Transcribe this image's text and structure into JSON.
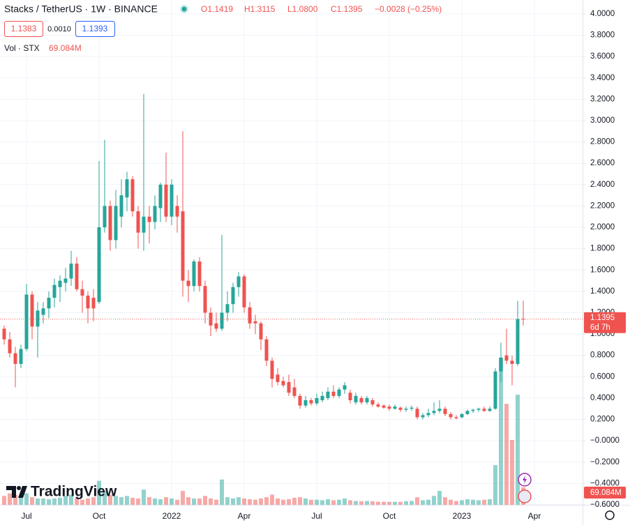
{
  "header": {
    "symbol": "Stacks / TetherUS · 1W · BINANCE",
    "ohlc": [
      "O1.1419",
      "H1.3115",
      "L1.0800",
      "C1.1395"
    ],
    "change": "−0.0028 (−0.25%)",
    "bid": 1.1383,
    "spread": "0.0010",
    "ask": 1.1393
  },
  "branding": "TradingView",
  "chart_data": {
    "type": "candlestick",
    "categories": [
      null,
      null,
      null,
      null,
      "Jul",
      null,
      null,
      null,
      null,
      null,
      null,
      null,
      null,
      null,
      null,
      null,
      null,
      "Oct",
      null,
      null,
      null,
      null,
      null,
      null,
      null,
      null,
      null,
      null,
      null,
      null,
      "2022",
      null,
      null,
      null,
      null,
      null,
      null,
      null,
      null,
      null,
      null,
      null,
      null,
      "Apr",
      null,
      null,
      null,
      null,
      null,
      null,
      null,
      null,
      null,
      null,
      null,
      null,
      "Jul",
      null,
      null,
      null,
      null,
      null,
      null,
      null,
      null,
      null,
      null,
      null,
      null,
      "Oct",
      null,
      null,
      null,
      null,
      null,
      null,
      null,
      null,
      null,
      null,
      null,
      null,
      "2023",
      null,
      null,
      null,
      null,
      null,
      null,
      null,
      null,
      null,
      null,
      null,
      null,
      "Apr"
    ],
    "open": [
      1.05,
      0.95,
      0.82,
      0.72,
      0.86,
      1.37,
      1.07,
      1.18,
      1.24,
      1.34,
      1.44,
      1.48,
      1.52,
      1.66,
      1.42,
      1.36,
      1.34,
      1.3,
      2.0,
      2.2,
      1.88,
      2.1,
      2.28,
      2.45,
      2.15,
      1.95,
      2.1,
      2.05,
      2.18,
      2.4,
      2.1,
      2.2,
      2.15,
      1.5,
      1.45,
      1.68,
      1.45,
      1.2,
      1.1,
      1.05,
      1.2,
      1.28,
      1.44,
      1.54,
      1.25,
      1.12,
      1.1,
      0.95,
      0.75,
      0.62,
      0.56,
      0.55,
      0.5,
      0.42,
      0.33,
      0.38,
      0.35,
      0.38,
      0.4,
      0.46,
      0.42,
      0.48,
      0.45,
      0.36,
      0.4,
      0.36,
      0.38,
      0.34,
      0.33,
      0.32,
      0.3,
      0.31,
      0.29,
      0.3,
      0.3,
      0.22,
      0.24,
      0.26,
      0.28,
      0.3,
      0.25,
      0.22,
      0.22,
      0.25,
      0.28,
      0.29,
      0.3,
      0.28,
      0.3,
      0.65,
      0.8,
      0.75,
      0.72,
      1.1419,
      null,
      null
    ],
    "high": [
      1.08,
      1.02,
      0.88,
      0.9,
      1.47,
      1.4,
      1.3,
      1.3,
      1.4,
      1.52,
      1.55,
      1.62,
      1.78,
      1.72,
      1.5,
      1.4,
      1.42,
      2.62,
      2.82,
      2.25,
      2.35,
      2.45,
      2.52,
      2.48,
      2.2,
      3.25,
      2.2,
      2.3,
      2.42,
      2.7,
      2.45,
      2.3,
      2.9,
      1.6,
      1.7,
      1.72,
      1.5,
      1.25,
      1.2,
      1.93,
      1.4,
      1.48,
      1.58,
      1.56,
      1.3,
      1.18,
      1.12,
      0.98,
      0.78,
      0.68,
      0.6,
      0.62,
      0.58,
      0.44,
      0.42,
      0.4,
      0.44,
      0.46,
      0.5,
      0.52,
      0.5,
      0.55,
      0.48,
      0.45,
      0.42,
      0.42,
      0.4,
      0.36,
      0.34,
      0.34,
      0.34,
      0.32,
      0.32,
      0.33,
      0.32,
      0.26,
      0.3,
      0.36,
      0.38,
      0.32,
      0.27,
      0.24,
      0.26,
      0.29,
      0.3,
      0.31,
      0.32,
      0.32,
      0.68,
      0.92,
      1.05,
      0.8,
      1.31,
      1.3115,
      null,
      null
    ],
    "low": [
      0.9,
      0.78,
      0.5,
      0.68,
      0.84,
      0.95,
      0.78,
      1.1,
      1.15,
      1.25,
      1.3,
      1.4,
      1.45,
      1.4,
      1.2,
      1.1,
      1.12,
      1.28,
      1.95,
      1.78,
      1.8,
      2.0,
      2.15,
      2.1,
      1.8,
      1.78,
      1.85,
      1.98,
      2.05,
      2.05,
      2.02,
      1.95,
      1.35,
      1.3,
      1.4,
      1.4,
      1.1,
      0.98,
      1.02,
      1.03,
      1.12,
      1.2,
      1.35,
      1.2,
      1.05,
      1.0,
      0.85,
      0.7,
      0.5,
      0.52,
      0.5,
      0.42,
      0.4,
      0.3,
      0.31,
      0.33,
      0.33,
      0.36,
      0.38,
      0.4,
      0.4,
      0.44,
      0.35,
      0.34,
      0.34,
      0.34,
      0.32,
      0.31,
      0.3,
      0.28,
      0.29,
      0.27,
      0.27,
      0.28,
      0.2,
      0.2,
      0.22,
      0.24,
      0.26,
      0.23,
      0.2,
      0.2,
      0.21,
      0.24,
      0.26,
      0.27,
      0.27,
      0.27,
      0.29,
      0.55,
      0.72,
      0.52,
      0.7,
      1.08,
      null,
      null
    ],
    "close": [
      0.95,
      0.82,
      0.72,
      0.86,
      1.37,
      1.07,
      1.22,
      1.24,
      1.34,
      1.46,
      1.5,
      1.52,
      1.66,
      1.42,
      1.36,
      1.24,
      1.24,
      2.0,
      2.2,
      1.88,
      2.2,
      2.3,
      2.45,
      2.15,
      1.95,
      2.1,
      2.05,
      2.2,
      2.4,
      2.1,
      2.4,
      2.1,
      1.5,
      1.45,
      1.68,
      1.45,
      1.2,
      1.08,
      1.05,
      1.2,
      1.28,
      1.44,
      1.54,
      1.25,
      1.1,
      1.1,
      0.95,
      0.75,
      0.58,
      0.55,
      0.52,
      0.45,
      0.42,
      0.33,
      0.38,
      0.35,
      0.4,
      0.42,
      0.46,
      0.42,
      0.48,
      0.52,
      0.38,
      0.42,
      0.36,
      0.4,
      0.34,
      0.32,
      0.31,
      0.3,
      0.32,
      0.29,
      0.3,
      0.31,
      0.22,
      0.24,
      0.26,
      0.28,
      0.3,
      0.25,
      0.22,
      0.21,
      0.25,
      0.28,
      0.29,
      0.3,
      0.28,
      0.3,
      0.65,
      0.78,
      0.75,
      0.72,
      1.14,
      1.1395,
      null,
      null
    ],
    "up_color": "#26a69a",
    "down_color": "#ef5350",
    "ylim": [
      -0.6,
      4.13
    ],
    "yticks": [
      {
        "value": 4.0,
        "label": "4.0000"
      },
      {
        "value": 3.8,
        "label": "3.8000"
      },
      {
        "value": 3.6,
        "label": "3.6000"
      },
      {
        "value": 3.4,
        "label": "3.4000"
      },
      {
        "value": 3.2,
        "label": "3.2000"
      },
      {
        "value": 3.0,
        "label": "3.0000"
      },
      {
        "value": 2.8,
        "label": "2.8000"
      },
      {
        "value": 2.6,
        "label": "2.6000"
      },
      {
        "value": 2.4,
        "label": "2.4000"
      },
      {
        "value": 2.2,
        "label": "2.2000"
      },
      {
        "value": 2.0,
        "label": "2.0000"
      },
      {
        "value": 1.8,
        "label": "1.8000"
      },
      {
        "value": 1.6,
        "label": "1.6000"
      },
      {
        "value": 1.4,
        "label": "1.4000"
      },
      {
        "value": 1.2,
        "label": "1.2000"
      },
      {
        "value": 1.0,
        "label": "1.0000"
      },
      {
        "value": 0.8,
        "label": "0.8000"
      },
      {
        "value": 0.6,
        "label": "0.6000"
      },
      {
        "value": 0.4,
        "label": "0.4000"
      },
      {
        "value": 0.2,
        "label": "0.2000"
      },
      {
        "value": 0,
        "label": "−0.0000"
      },
      {
        "value": -0.2,
        "label": "−0.2000"
      },
      {
        "value": -0.4,
        "label": "−0.4000"
      },
      {
        "value": -0.6,
        "label": "−0.6000"
      }
    ],
    "grid": true,
    "last_price_countdown": "6d 7h",
    "volume": {
      "name": "Vol · STX",
      "last_label": "69.084M",
      "values": [
        35,
        45,
        40,
        30,
        45,
        30,
        25,
        25,
        22,
        25,
        28,
        35,
        40,
        25,
        20,
        25,
        30,
        95,
        55,
        40,
        35,
        30,
        35,
        28,
        25,
        60,
        30,
        25,
        22,
        30,
        25,
        20,
        55,
        30,
        25,
        25,
        35,
        25,
        20,
        100,
        30,
        25,
        30,
        25,
        22,
        20,
        25,
        30,
        40,
        25,
        20,
        22,
        28,
        30,
        25,
        20,
        20,
        18,
        22,
        18,
        20,
        25,
        18,
        15,
        14,
        15,
        14,
        12,
        12,
        12,
        12,
        12,
        14,
        15,
        30,
        18,
        20,
        35,
        55,
        30,
        20,
        15,
        18,
        22,
        20,
        18,
        20,
        22,
        157,
        580,
        400,
        257,
        436,
        69.084,
        null,
        null
      ]
    }
  }
}
